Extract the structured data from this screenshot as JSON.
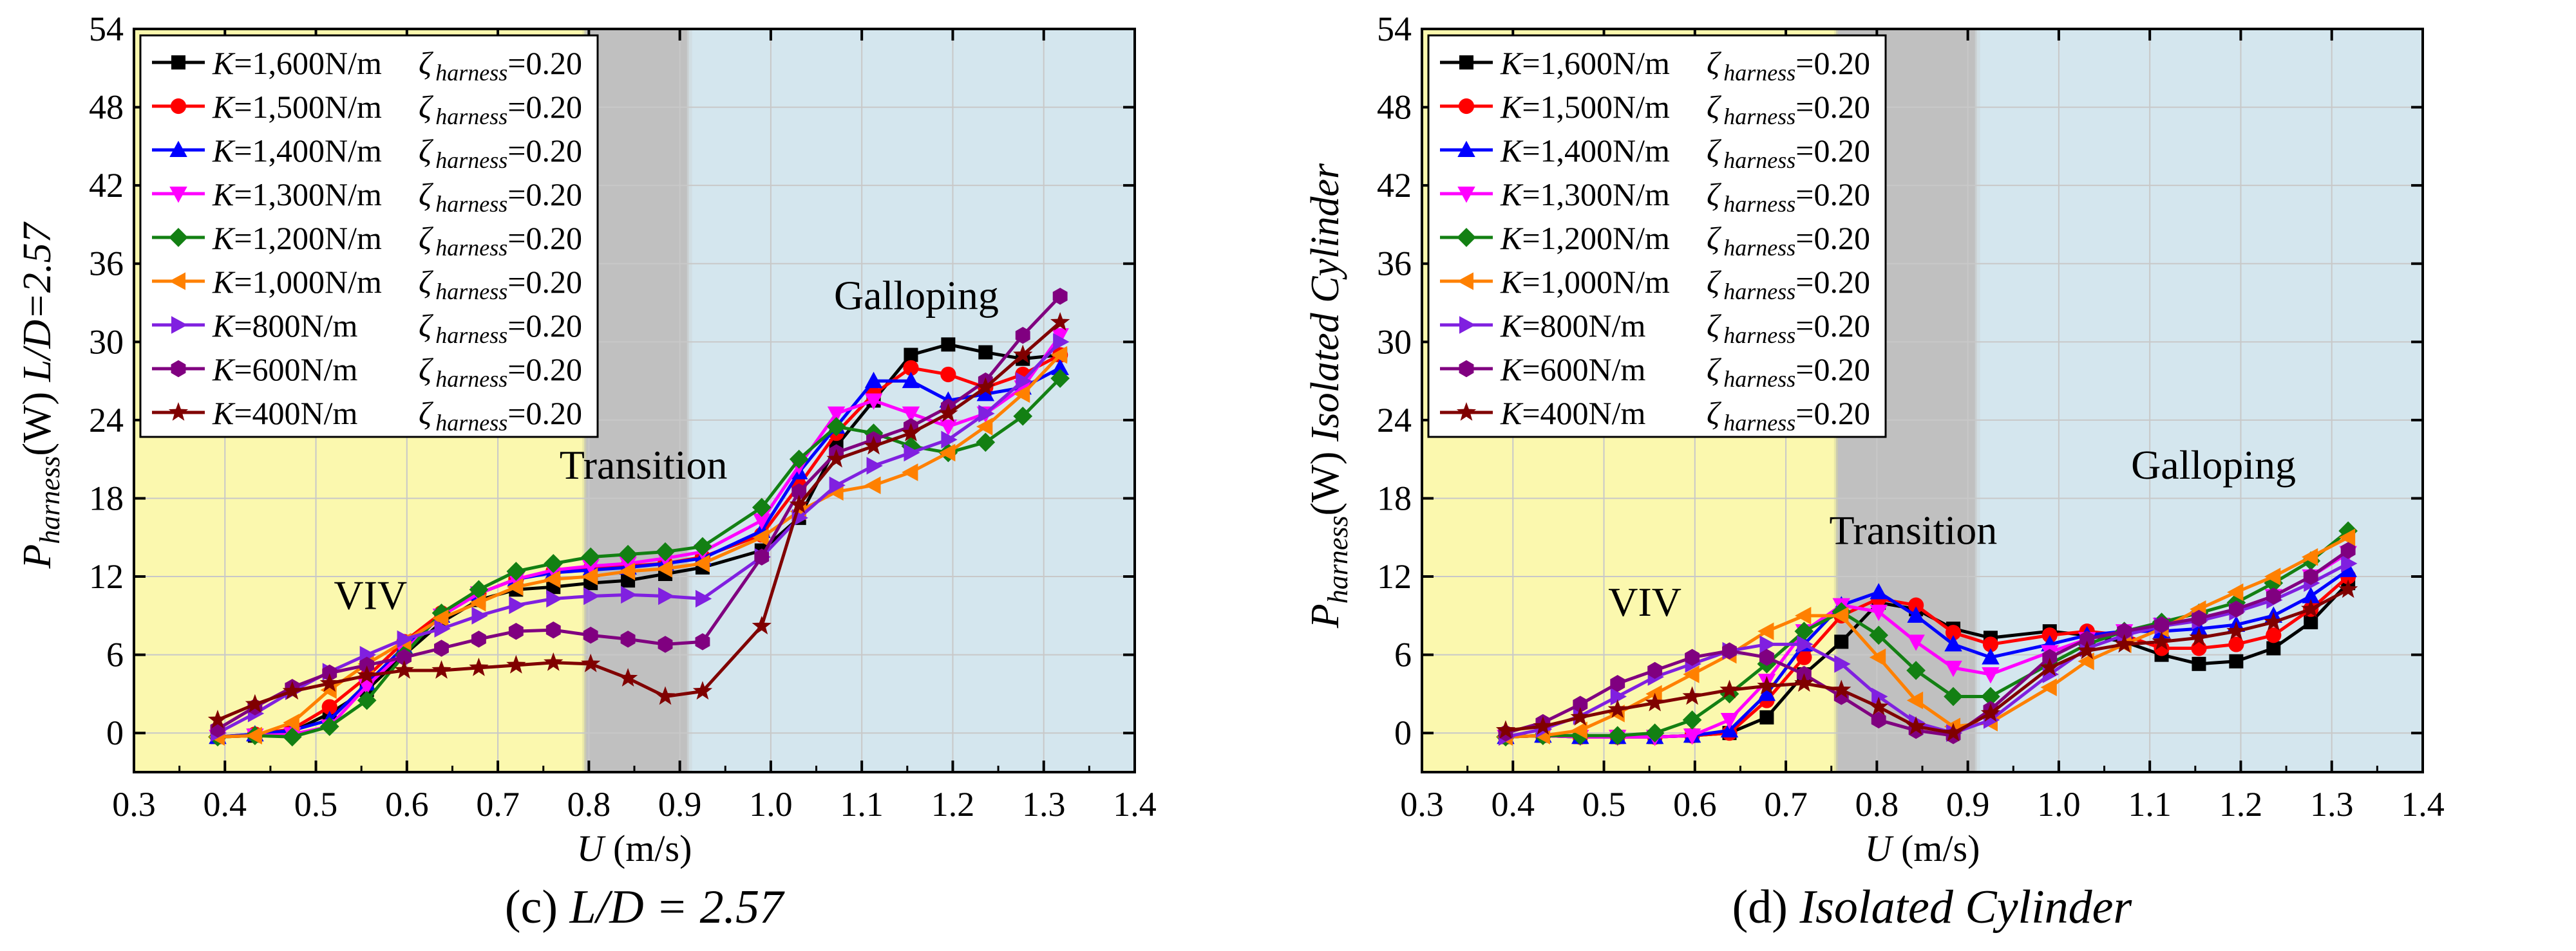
{
  "chart_data": [
    {
      "type": "line",
      "panel": "c",
      "caption_label": "(c)",
      "caption_text": "L/D = 2.57",
      "ylabel_main": "P",
      "ylabel_sub": "harness",
      "ylabel_unit": "(W)",
      "ylabel_extra": "L/D=2.57",
      "xlabel": "U (m/s)",
      "xlim": [
        0.3,
        1.4
      ],
      "ylim": [
        -3,
        54
      ],
      "xticks": [
        "0.3",
        "0.4",
        "0.5",
        "0.6",
        "0.7",
        "0.8",
        "0.9",
        "1.0",
        "1.1",
        "1.2",
        "1.3",
        "1.4"
      ],
      "yticks": [
        "0",
        "6",
        "12",
        "18",
        "24",
        "30",
        "36",
        "42",
        "48",
        "54"
      ],
      "regions": [
        {
          "name": "VIV",
          "x_from": 0.3,
          "x_to": 0.795,
          "color": "#fbf8ae",
          "label_x": 0.56,
          "label_y": 9.5
        },
        {
          "name": "Transition",
          "x_from": 0.795,
          "x_to": 0.91,
          "color": "#c0c0c0",
          "label_x": 0.86,
          "label_y": 19.5
        },
        {
          "name": "Galloping",
          "x_from": 0.91,
          "x_to": 1.4,
          "color": "#d4e6ee",
          "label_x": 1.16,
          "label_y": 32.5
        }
      ],
      "x": [
        0.392,
        0.433,
        0.474,
        0.515,
        0.556,
        0.597,
        0.638,
        0.679,
        0.72,
        0.761,
        0.802,
        0.843,
        0.884,
        0.925,
        0.99,
        1.031,
        1.072,
        1.113,
        1.154,
        1.195,
        1.236,
        1.277,
        1.318
      ],
      "series": [
        {
          "name": "K=1,600N/m",
          "k_label": "K",
          "k_value": "=1,600N/m",
          "zeta": "ζ",
          "zeta_sub": "harness",
          "zeta_value": "=0.20",
          "color": "#000000",
          "marker": "square",
          "values": [
            -0.3,
            -0.2,
            0.1,
            1.5,
            3.3,
            6.0,
            8.5,
            10.2,
            11.0,
            11.2,
            11.5,
            11.7,
            12.2,
            12.7,
            14.0,
            16.5,
            22.0,
            25.5,
            29.0,
            29.8,
            29.2,
            28.7,
            29.0
          ]
        },
        {
          "name": "K=1,500N/m",
          "k_label": "K",
          "k_value": "=1,500N/m",
          "zeta": "ζ",
          "zeta_sub": "harness",
          "zeta_value": "=0.20",
          "color": "#ff0000",
          "marker": "circle",
          "values": [
            -0.3,
            -0.1,
            0.3,
            2.0,
            4.3,
            7.0,
            9.2,
            10.7,
            11.8,
            12.4,
            12.6,
            12.8,
            13.0,
            13.5,
            15.2,
            19.0,
            23.0,
            26.0,
            28.0,
            27.5,
            26.5,
            27.5,
            29.0
          ]
        },
        {
          "name": "K=1,400N/m",
          "k_label": "K",
          "k_value": "=1,400N/m",
          "zeta": "ζ",
          "zeta_sub": "harness",
          "zeta_value": "=0.20",
          "color": "#0000ff",
          "marker": "triangle-up",
          "values": [
            -0.3,
            -0.1,
            0.2,
            1.0,
            3.8,
            6.6,
            9.0,
            10.7,
            11.8,
            12.3,
            12.5,
            12.7,
            13.0,
            13.4,
            15.5,
            20.0,
            23.5,
            27.0,
            27.0,
            25.5,
            26.0,
            26.5,
            28.0
          ]
        },
        {
          "name": "K=1,300N/m",
          "k_label": "K",
          "k_value": "=1,300N/m",
          "zeta": "ζ",
          "zeta_sub": "harness",
          "zeta_value": "=0.20",
          "color": "#ff00ff",
          "marker": "triangle-down",
          "values": [
            -0.3,
            -0.2,
            -0.1,
            0.5,
            3.6,
            6.3,
            9.0,
            10.7,
            11.8,
            12.5,
            12.8,
            13.0,
            13.4,
            13.9,
            16.3,
            20.5,
            24.5,
            25.5,
            24.5,
            23.5,
            24.5,
            26.5,
            30.5
          ]
        },
        {
          "name": "K=1,200N/m",
          "k_label": "K",
          "k_value": "=1,200N/m",
          "zeta": "ζ",
          "zeta_sub": "harness",
          "zeta_value": "=0.20",
          "color": "#138013",
          "marker": "diamond",
          "values": [
            -0.3,
            -0.2,
            -0.3,
            0.5,
            2.5,
            6.0,
            9.2,
            11.0,
            12.4,
            13.0,
            13.5,
            13.7,
            13.9,
            14.3,
            17.3,
            21.0,
            23.5,
            23.0,
            22.0,
            21.5,
            22.3,
            24.3,
            27.2
          ]
        },
        {
          "name": "K=1,000N/m",
          "k_label": "K",
          "k_value": "=1,000N/m",
          "zeta": "ζ",
          "zeta_sub": "harness",
          "zeta_value": "=0.20",
          "color": "#ff8000",
          "marker": "triangle-left",
          "values": [
            -0.3,
            -0.2,
            0.8,
            3.3,
            5.3,
            7.0,
            8.8,
            10.0,
            11.2,
            11.8,
            12.0,
            12.4,
            12.6,
            13.0,
            15.0,
            17.0,
            18.5,
            19.0,
            20.0,
            21.5,
            23.5,
            26.0,
            29.0
          ]
        },
        {
          "name": "K=800N/m",
          "k_label": "K",
          "k_value": "=800N/m",
          "zeta": "ζ",
          "zeta_sub": "harness",
          "zeta_value": "=0.20",
          "color": "#8020e0",
          "marker": "triangle-right",
          "values": [
            0.0,
            1.5,
            3.2,
            4.7,
            6.0,
            7.2,
            8.0,
            9.0,
            9.8,
            10.3,
            10.5,
            10.6,
            10.5,
            10.3,
            13.5,
            16.5,
            19.0,
            20.5,
            21.5,
            22.5,
            24.5,
            27.0,
            30.0
          ]
        },
        {
          "name": "K=600N/m",
          "k_label": "K",
          "k_value": "=600N/m",
          "zeta": "ζ",
          "zeta_sub": "harness",
          "zeta_value": "=0.20",
          "color": "#800080",
          "marker": "hexagon",
          "values": [
            0.3,
            2.0,
            3.5,
            4.6,
            5.2,
            5.8,
            6.5,
            7.2,
            7.8,
            7.9,
            7.5,
            7.2,
            6.8,
            7.0,
            13.5,
            18.5,
            21.5,
            22.5,
            23.5,
            25.0,
            27.0,
            30.5,
            33.5
          ]
        },
        {
          "name": "K=400N/m",
          "k_label": "K",
          "k_value": "=400N/m",
          "zeta": "ζ",
          "zeta_sub": "harness",
          "zeta_value": "=0.20",
          "color": "#800000",
          "marker": "star",
          "values": [
            1.0,
            2.2,
            3.2,
            3.8,
            4.4,
            4.8,
            4.8,
            5.0,
            5.2,
            5.4,
            5.3,
            4.2,
            2.8,
            3.2,
            8.2,
            17.5,
            21.0,
            22.0,
            23.0,
            24.5,
            26.5,
            29.0,
            31.5
          ]
        }
      ]
    },
    {
      "type": "line",
      "panel": "d",
      "caption_label": "(d)",
      "caption_text": "Isolated Cylinder",
      "ylabel_main": "P",
      "ylabel_sub": "harness",
      "ylabel_unit": "(W)",
      "ylabel_extra": "Isolated Cylinder",
      "xlabel": "U (m/s)",
      "xlim": [
        0.3,
        1.4
      ],
      "ylim": [
        -3,
        54
      ],
      "xticks": [
        "0.3",
        "0.4",
        "0.5",
        "0.6",
        "0.7",
        "0.8",
        "0.9",
        "1.0",
        "1.1",
        "1.2",
        "1.3",
        "1.4"
      ],
      "yticks": [
        "0",
        "6",
        "12",
        "18",
        "24",
        "30",
        "36",
        "42",
        "48",
        "54"
      ],
      "regions": [
        {
          "name": "VIV",
          "x_from": 0.3,
          "x_to": 0.755,
          "color": "#fbf8ae",
          "label_x": 0.545,
          "label_y": 9.0
        },
        {
          "name": "Transition",
          "x_from": 0.755,
          "x_to": 0.91,
          "color": "#c0c0c0",
          "label_x": 0.84,
          "label_y": 14.5
        },
        {
          "name": "Galloping",
          "x_from": 0.91,
          "x_to": 1.4,
          "color": "#d4e6ee",
          "label_x": 1.17,
          "label_y": 19.5
        }
      ],
      "x": [
        0.392,
        0.433,
        0.474,
        0.515,
        0.556,
        0.597,
        0.638,
        0.679,
        0.72,
        0.761,
        0.802,
        0.843,
        0.884,
        0.925,
        0.99,
        1.031,
        1.072,
        1.113,
        1.154,
        1.195,
        1.236,
        1.277,
        1.318
      ],
      "series": [
        {
          "name": "K=1,600N/m",
          "k_label": "K",
          "k_value": "=1,600N/m",
          "zeta": "ζ",
          "zeta_sub": "harness",
          "zeta_value": "=0.20",
          "color": "#000000",
          "marker": "square",
          "values": [
            -0.3,
            -0.2,
            -0.3,
            -0.3,
            -0.3,
            -0.2,
            0.0,
            1.2,
            4.5,
            7.0,
            10.0,
            9.5,
            8.0,
            7.3,
            7.8,
            7.5,
            7.0,
            6.0,
            5.3,
            5.5,
            6.5,
            8.5,
            11.5
          ]
        },
        {
          "name": "K=1,500N/m",
          "k_label": "K",
          "k_value": "=1,500N/m",
          "zeta": "ζ",
          "zeta_sub": "harness",
          "zeta_value": "=0.20",
          "color": "#ff0000",
          "marker": "circle",
          "values": [
            -0.3,
            -0.2,
            -0.3,
            -0.3,
            -0.3,
            -0.2,
            0.0,
            2.5,
            5.8,
            9.0,
            10.3,
            9.8,
            7.7,
            6.8,
            7.5,
            7.8,
            7.5,
            6.5,
            6.5,
            6.8,
            7.5,
            9.5,
            12.0
          ]
        },
        {
          "name": "K=1,400N/m",
          "k_label": "K",
          "k_value": "=1,400N/m",
          "zeta": "ζ",
          "zeta_sub": "harness",
          "zeta_value": "=0.20",
          "color": "#0000ff",
          "marker": "triangle-up",
          "values": [
            -0.3,
            -0.2,
            -0.3,
            -0.3,
            -0.3,
            -0.2,
            0.2,
            3.0,
            6.8,
            9.8,
            10.8,
            9.0,
            6.8,
            5.8,
            6.8,
            7.5,
            7.8,
            7.8,
            8.0,
            8.3,
            9.0,
            10.5,
            12.5
          ]
        },
        {
          "name": "K=1,300N/m",
          "k_label": "K",
          "k_value": "=1,300N/m",
          "zeta": "ζ",
          "zeta_sub": "harness",
          "zeta_value": "=0.20",
          "color": "#ff00ff",
          "marker": "triangle-down",
          "values": [
            -0.3,
            -0.2,
            -0.3,
            -0.3,
            -0.3,
            -0.2,
            1.0,
            4.0,
            7.8,
            9.8,
            9.3,
            7.0,
            5.0,
            4.5,
            6.2,
            7.2,
            7.8,
            8.3,
            8.8,
            9.5,
            10.5,
            12.0,
            13.8
          ]
        },
        {
          "name": "K=1,200N/m",
          "k_label": "K",
          "k_value": "=1,200N/m",
          "zeta": "ζ",
          "zeta_sub": "harness",
          "zeta_value": "=0.20",
          "color": "#138013",
          "marker": "diamond",
          "values": [
            -0.3,
            -0.2,
            -0.2,
            -0.2,
            0.0,
            1.0,
            3.0,
            5.3,
            7.8,
            9.3,
            7.5,
            4.8,
            2.8,
            2.8,
            5.3,
            6.8,
            7.8,
            8.5,
            9.2,
            10.0,
            11.5,
            13.2,
            15.5
          ]
        },
        {
          "name": "K=1,000N/m",
          "k_label": "K",
          "k_value": "=1,000N/m",
          "zeta": "ζ",
          "zeta_sub": "harness",
          "zeta_value": "=0.20",
          "color": "#ff8000",
          "marker": "triangle-left",
          "values": [
            -0.3,
            -0.2,
            0.2,
            1.5,
            3.0,
            4.5,
            6.0,
            7.8,
            9.0,
            9.0,
            5.8,
            2.5,
            0.5,
            0.8,
            3.5,
            5.5,
            6.8,
            8.0,
            9.5,
            10.8,
            12.0,
            13.5,
            15.0
          ]
        },
        {
          "name": "K=800N/m",
          "k_label": "K",
          "k_value": "=800N/m",
          "zeta": "ζ",
          "zeta_sub": "harness",
          "zeta_value": "=0.20",
          "color": "#8020e0",
          "marker": "triangle-right",
          "values": [
            -0.3,
            0.3,
            1.3,
            2.8,
            4.3,
            5.3,
            6.3,
            6.8,
            6.8,
            5.3,
            2.8,
            0.8,
            0.0,
            1.0,
            4.5,
            6.5,
            7.5,
            8.2,
            8.6,
            9.3,
            10.2,
            11.5,
            13.0
          ]
        },
        {
          "name": "K=600N/m",
          "k_label": "K",
          "k_value": "=600N/m",
          "zeta": "ζ",
          "zeta_sub": "harness",
          "zeta_value": "=0.20",
          "color": "#800080",
          "marker": "hexagon",
          "values": [
            0.0,
            0.8,
            2.2,
            3.8,
            4.8,
            5.8,
            6.3,
            5.8,
            4.5,
            2.8,
            1.0,
            0.2,
            -0.2,
            1.8,
            5.8,
            7.2,
            7.8,
            8.3,
            8.8,
            9.5,
            10.5,
            12.0,
            14.0
          ]
        },
        {
          "name": "K=400N/m",
          "k_label": "K",
          "k_value": "=400N/m",
          "zeta": "ζ",
          "zeta_sub": "harness",
          "zeta_value": "=0.20",
          "color": "#800000",
          "marker": "star",
          "values": [
            0.2,
            0.5,
            1.2,
            1.8,
            2.3,
            2.8,
            3.3,
            3.6,
            3.8,
            3.3,
            2.0,
            0.5,
            0.0,
            1.5,
            5.0,
            6.3,
            6.8,
            7.0,
            7.3,
            7.8,
            8.5,
            9.5,
            11.0
          ]
        }
      ]
    }
  ]
}
